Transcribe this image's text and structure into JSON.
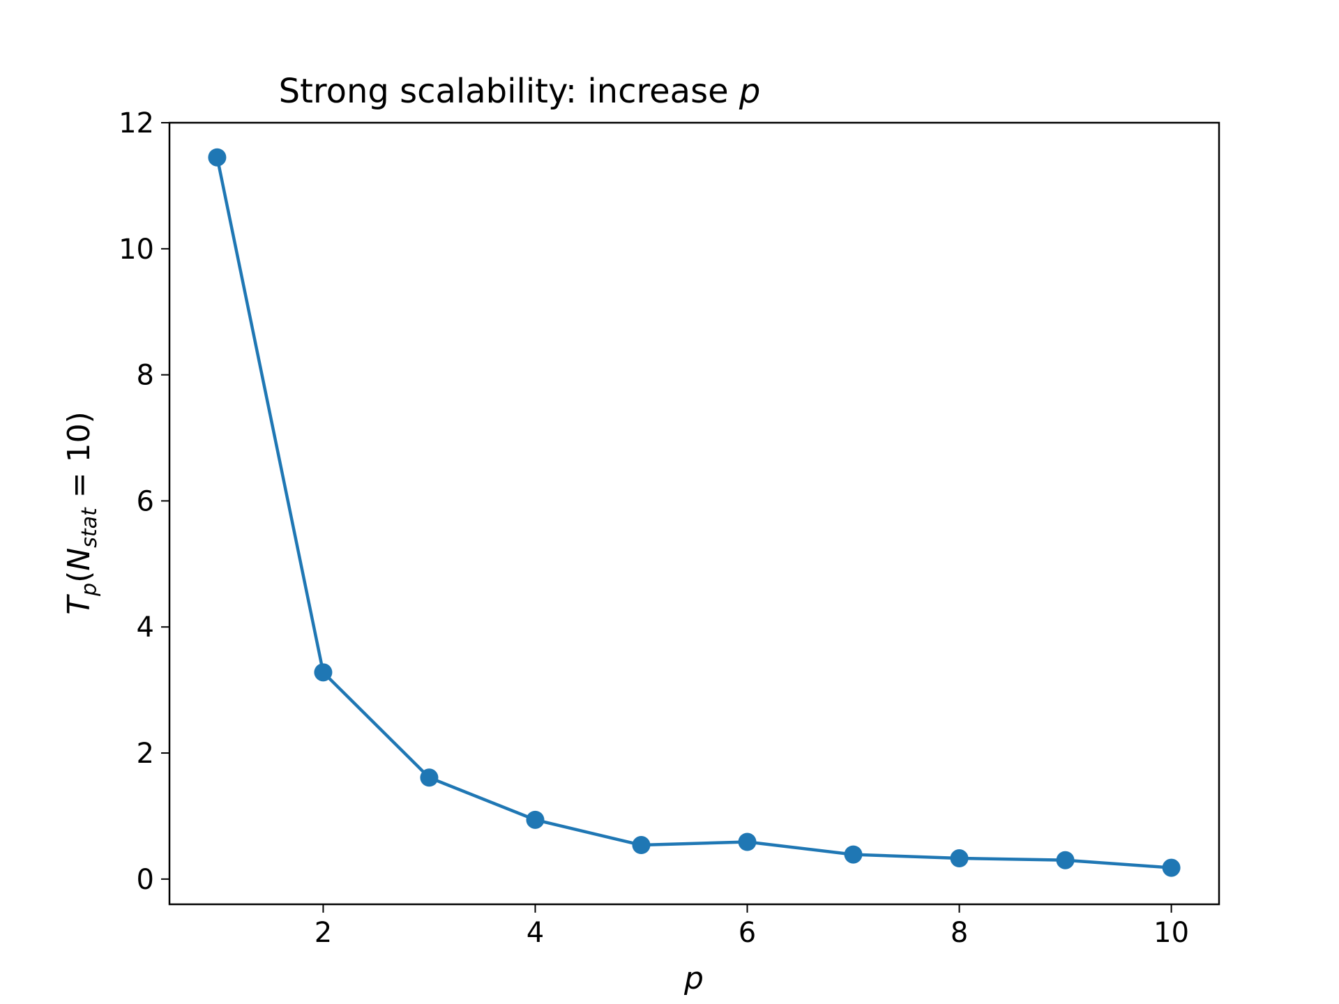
{
  "chart_data": {
    "type": "line",
    "title": {
      "prefix": "Strong scalability: increase ",
      "var": "p"
    },
    "xlabel": "p",
    "ylabel": {
      "T": "T",
      "T_sub": "p",
      "open": "(",
      "N": "N",
      "N_sub": "stat",
      "rest": " = 10)"
    },
    "xlim": [
      0.55,
      10.45
    ],
    "ylim": [
      -0.4,
      12
    ],
    "xticks": [
      2,
      4,
      6,
      8,
      10
    ],
    "yticks": [
      0,
      2,
      4,
      6,
      8,
      10,
      12
    ],
    "grid": false,
    "series": [
      {
        "color": "#1f77b4",
        "marker": "circle",
        "x": [
          1,
          2,
          3,
          4,
          5,
          6,
          7,
          8,
          9,
          10
        ],
        "y": [
          11.45,
          3.28,
          1.61,
          0.94,
          0.54,
          0.59,
          0.39,
          0.33,
          0.3,
          0.18
        ]
      }
    ]
  }
}
